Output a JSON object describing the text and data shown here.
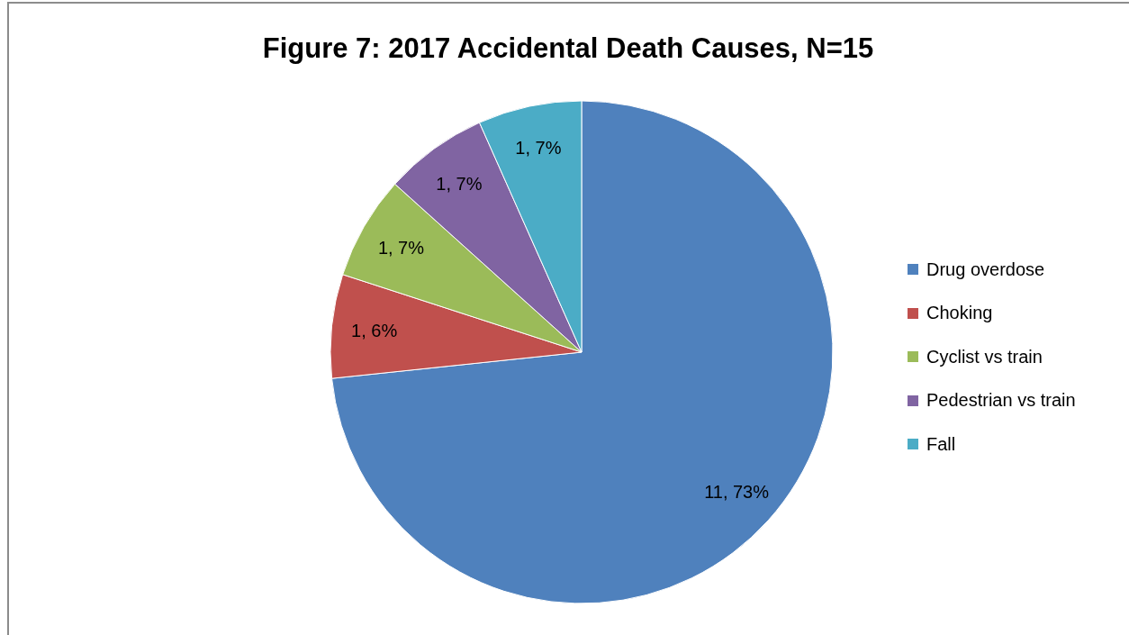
{
  "chart_data": {
    "type": "pie",
    "title": "Figure 7: 2017 Accidental Death Causes, N=15",
    "categories": [
      "Drug overdose",
      "Choking",
      "Cyclist vs train",
      "Pedestrian vs train",
      "Fall"
    ],
    "values": [
      11,
      1,
      1,
      1,
      1
    ],
    "colors": [
      "#4f81bd",
      "#c0504d",
      "#9bbb59",
      "#8064a2",
      "#4bacc6"
    ],
    "value_labels": [
      "11, 73%",
      "1, 6%",
      "1, 7%",
      "1, 7%",
      "1, 7%"
    ],
    "legend": "right"
  }
}
